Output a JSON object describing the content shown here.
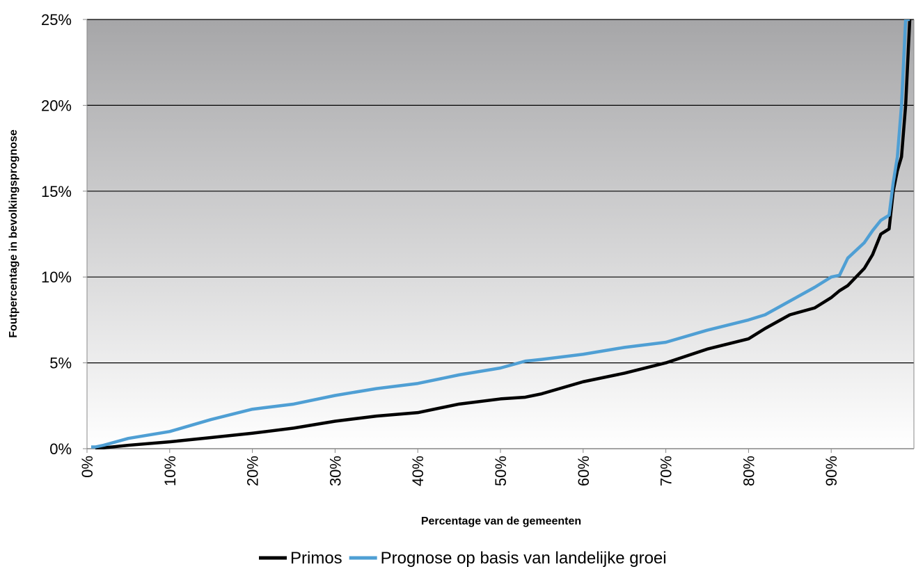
{
  "chart_data": {
    "type": "line",
    "x_label": "Percentage van de gemeenten",
    "y_label": "Foutpercentage in bevolkingsprognose",
    "x": [
      0.5,
      1,
      2,
      5,
      10,
      15,
      20,
      25,
      30,
      35,
      40,
      45,
      50,
      53,
      55,
      60,
      65,
      70,
      75,
      80,
      82,
      85,
      88,
      90,
      91,
      92,
      94,
      95,
      96,
      97,
      97.5,
      98,
      98.5,
      99,
      99.5
    ],
    "series": [
      {
        "name": "Primos",
        "color": "#000000",
        "values": [
          null,
          0,
          0.05,
          0.2,
          0.4,
          0.65,
          0.9,
          1.2,
          1.6,
          1.9,
          2.1,
          2.6,
          2.9,
          3.0,
          3.2,
          3.9,
          4.4,
          5.0,
          5.8,
          6.4,
          7.0,
          7.8,
          8.2,
          8.8,
          9.2,
          9.5,
          10.5,
          11.3,
          12.5,
          12.8,
          15.0,
          16.2,
          17,
          20,
          25
        ]
      },
      {
        "name": "Prognose op basis van landelijke groei",
        "color": "#4f9fd4",
        "values": [
          0.1,
          0.1,
          0.2,
          0.6,
          1.0,
          1.7,
          2.3,
          2.6,
          3.1,
          3.5,
          3.8,
          4.3,
          4.7,
          5.1,
          5.2,
          5.5,
          5.9,
          6.2,
          6.9,
          7.5,
          7.8,
          8.6,
          9.4,
          10.0,
          10.1,
          11.1,
          12.0,
          12.7,
          13.3,
          13.6,
          15.5,
          17,
          20,
          25,
          25
        ]
      }
    ],
    "xlim": [
      0,
      100
    ],
    "xticks": [
      {
        "value": 0,
        "label": "0%"
      },
      {
        "value": 10,
        "label": "10%"
      },
      {
        "value": 20,
        "label": "20%"
      },
      {
        "value": 30,
        "label": "30%"
      },
      {
        "value": 40,
        "label": "40%"
      },
      {
        "value": 50,
        "label": "50%"
      },
      {
        "value": 60,
        "label": "60%"
      },
      {
        "value": 70,
        "label": "70%"
      },
      {
        "value": 80,
        "label": "80%"
      },
      {
        "value": 90,
        "label": "90%"
      }
    ],
    "ylim": [
      0,
      25
    ],
    "yticks": [
      {
        "value": 0,
        "label": "0%"
      },
      {
        "value": 5,
        "label": "5%"
      },
      {
        "value": 10,
        "label": "10%"
      },
      {
        "value": 15,
        "label": "15%"
      },
      {
        "value": 20,
        "label": "20%"
      },
      {
        "value": 25,
        "label": "25%"
      }
    ],
    "grid": true,
    "legend": "bottom"
  }
}
